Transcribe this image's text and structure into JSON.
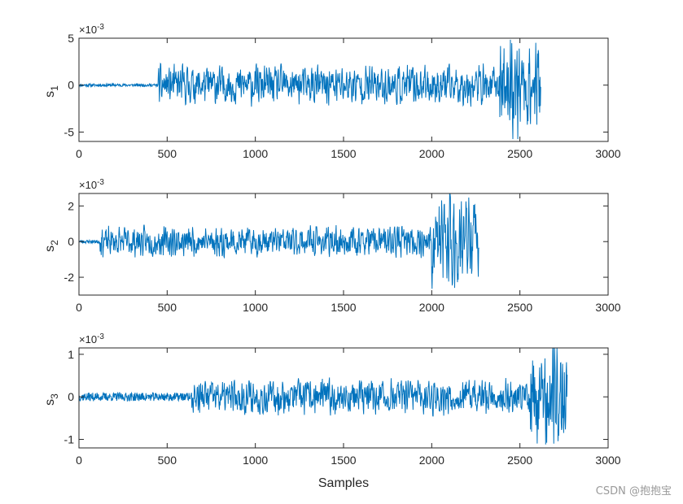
{
  "watermark": "CSDN @抱抱宝",
  "line_color": "#0072BD",
  "chart_data": [
    {
      "type": "line",
      "ylabel_main": "s",
      "ylabel_sub": "1",
      "xlabel": "",
      "exponent_label": "×10",
      "exponent_power": "-3",
      "xlim": [
        0,
        3000
      ],
      "ylim": [
        -6,
        5
      ],
      "xticks": [
        0,
        500,
        1000,
        1500,
        2000,
        2500,
        3000
      ],
      "yticks": [
        -5,
        0,
        5
      ],
      "ytick_labels": [
        "-5",
        "0",
        "5"
      ],
      "signal": {
        "n": 2620,
        "quiet_until": 450,
        "quiet_amp": 0.15,
        "amp": 2.0,
        "peak_amp": 5.0,
        "peak_start": 2380,
        "seed": 11
      }
    },
    {
      "type": "line",
      "ylabel_main": "s",
      "ylabel_sub": "2",
      "xlabel": "",
      "exponent_label": "×10",
      "exponent_power": "-3",
      "xlim": [
        0,
        3000
      ],
      "ylim": [
        -3,
        2.7
      ],
      "xticks": [
        0,
        500,
        1000,
        1500,
        2000,
        2500,
        3000
      ],
      "yticks": [
        -2,
        0,
        2
      ],
      "ytick_labels": [
        "-2",
        "0",
        "2"
      ],
      "signal": {
        "n": 2270,
        "quiet_until": 120,
        "quiet_amp": 0.1,
        "amp": 0.8,
        "peak_amp": 2.7,
        "peak_start": 2000,
        "seed": 23
      }
    },
    {
      "type": "line",
      "ylabel_main": "s",
      "ylabel_sub": "3",
      "xlabel": "Samples",
      "exponent_label": "×10",
      "exponent_power": "-3",
      "xlim": [
        0,
        3000
      ],
      "ylim": [
        -1.2,
        1.15
      ],
      "xticks": [
        0,
        500,
        1000,
        1500,
        2000,
        2500,
        3000
      ],
      "yticks": [
        -1,
        0,
        1
      ],
      "ytick_labels": [
        "-1",
        "0",
        "1"
      ],
      "signal": {
        "n": 2770,
        "quiet_until": 640,
        "quiet_amp": 0.1,
        "amp": 0.4,
        "peak_amp": 1.15,
        "peak_start": 2560,
        "seed": 37
      }
    }
  ]
}
